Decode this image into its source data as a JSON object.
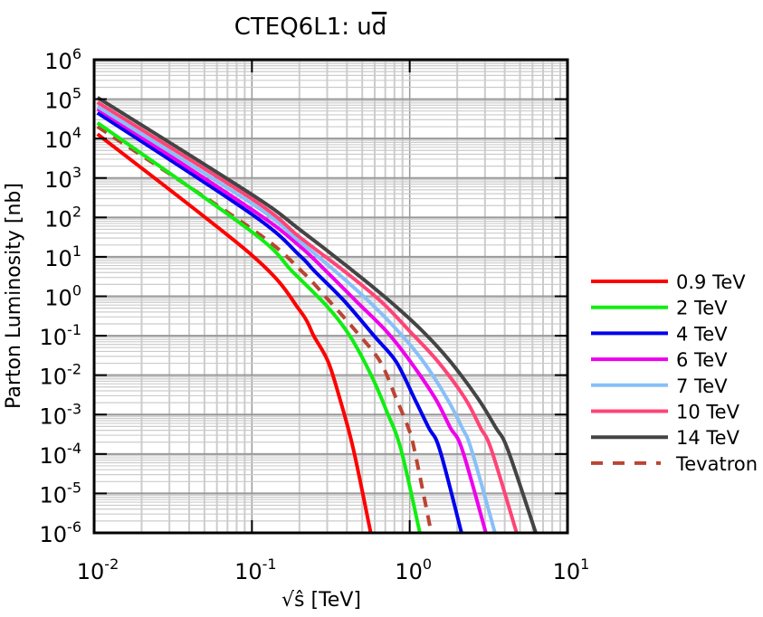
{
  "chart_data": {
    "type": "line",
    "title": "CTEQ6L1: u",
    "title_overlined": "d",
    "xlabel": "√ŝ [TeV]",
    "ylabel": "Parton Luminosity [nb]",
    "xscale": "log",
    "yscale": "log",
    "xlim": [
      0.01,
      10
    ],
    "ylim": [
      1e-06,
      1000000.0
    ],
    "grid": true,
    "legend_position": "right",
    "x_ticks": [
      {
        "base": "10",
        "exp": "-2",
        "value": 0.01
      },
      {
        "base": "10",
        "exp": "-1",
        "value": 0.1
      },
      {
        "base": "10",
        "exp": "0",
        "value": 1
      },
      {
        "base": "10",
        "exp": "1",
        "value": 10
      }
    ],
    "y_ticks": [
      {
        "base": "10",
        "exp": "6",
        "value": 1000000.0
      },
      {
        "base": "10",
        "exp": "5",
        "value": 100000.0
      },
      {
        "base": "10",
        "exp": "4",
        "value": 10000.0
      },
      {
        "base": "10",
        "exp": "3",
        "value": 1000.0
      },
      {
        "base": "10",
        "exp": "2",
        "value": 100.0
      },
      {
        "base": "10",
        "exp": "1",
        "value": 10.0
      },
      {
        "base": "10",
        "exp": "0",
        "value": 1
      },
      {
        "base": "10",
        "exp": "-1",
        "value": 0.1
      },
      {
        "base": "10",
        "exp": "-2",
        "value": 0.01
      },
      {
        "base": "10",
        "exp": "-3",
        "value": 0.001
      },
      {
        "base": "10",
        "exp": "-4",
        "value": 0.0001
      },
      {
        "base": "10",
        "exp": "-5",
        "value": 1e-05
      },
      {
        "base": "10",
        "exp": "-6",
        "value": 1e-06
      }
    ],
    "series": [
      {
        "name": "0.9 TeV",
        "color": "#ff0000",
        "dashed": false,
        "x": [
          0.0105,
          0.1,
          0.2,
          0.248,
          0.304,
          0.36,
          0.44,
          0.566
        ],
        "y": [
          13000,
          11,
          0.45,
          0.095,
          0.022,
          0.0026,
          0.00013,
          1e-06
        ]
      },
      {
        "name": "2 TeV",
        "color": "#11ee11",
        "dashed": false,
        "x": [
          0.0105,
          0.1,
          0.18,
          0.304,
          0.42,
          0.57,
          0.71,
          0.88,
          1.16
        ],
        "y": [
          25000,
          43,
          4.3,
          0.52,
          0.095,
          0.01,
          0.0013,
          0.00013,
          1e-06
        ]
      },
      {
        "name": "4 TeV",
        "color": "#0000ee",
        "dashed": false,
        "x": [
          0.0105,
          0.1,
          0.2,
          0.25,
          0.386,
          0.6,
          0.82,
          1.07,
          1.32,
          1.55,
          2.13
        ],
        "y": [
          45000,
          120,
          11,
          4.3,
          0.75,
          0.095,
          0.022,
          0.0026,
          0.00046,
          0.00013,
          1e-06
        ]
      },
      {
        "name": "6 TeV",
        "color": "#ee00ee",
        "dashed": false,
        "x": [
          0.0105,
          0.1,
          0.2,
          0.296,
          0.458,
          0.718,
          1.01,
          1.45,
          1.81,
          2.15,
          3.04
        ],
        "y": [
          57000,
          158,
          19,
          4.3,
          0.75,
          0.125,
          0.022,
          0.0026,
          0.00046,
          0.00013,
          1e-06
        ]
      },
      {
        "name": "7 TeV",
        "color": "#88c0f8",
        "dashed": false,
        "x": [
          0.0105,
          0.1,
          0.2,
          0.338,
          0.55,
          0.853,
          1.22,
          1.72,
          2.15,
          2.46,
          3.47
        ],
        "y": [
          65000,
          224,
          25,
          4.3,
          0.75,
          0.125,
          0.022,
          0.0026,
          0.00046,
          0.00013,
          1e-06
        ]
      },
      {
        "name": "10 TeV",
        "color": "#ff4477",
        "dashed": false,
        "x": [
          0.0105,
          0.1,
          0.2,
          0.386,
          0.655,
          1.01,
          1.51,
          2.24,
          2.81,
          3.29,
          4.76
        ],
        "y": [
          83000,
          295,
          32,
          4.3,
          0.75,
          0.125,
          0.022,
          0.0026,
          0.00046,
          0.00013,
          1e-06
        ]
      },
      {
        "name": "14 TeV",
        "color": "#444444",
        "dashed": false,
        "x": [
          0.0105,
          0.1,
          0.2,
          0.44,
          0.748,
          1.22,
          1.81,
          2.7,
          3.52,
          4.18,
          6.3
        ],
        "y": [
          110000,
          380,
          50,
          4.3,
          0.75,
          0.125,
          0.022,
          0.0026,
          0.00046,
          0.00013,
          1e-06
        ]
      },
      {
        "name": "Tevatron",
        "color": "#bb4433",
        "dashed": true,
        "x": [
          0.0105,
          0.1,
          0.207,
          0.31,
          0.46,
          0.65,
          0.82,
          0.98,
          1.07,
          1.37
        ],
        "y": [
          20000,
          51,
          4.3,
          0.75,
          0.125,
          0.022,
          0.0026,
          0.00046,
          0.00013,
          1e-06
        ]
      }
    ]
  }
}
